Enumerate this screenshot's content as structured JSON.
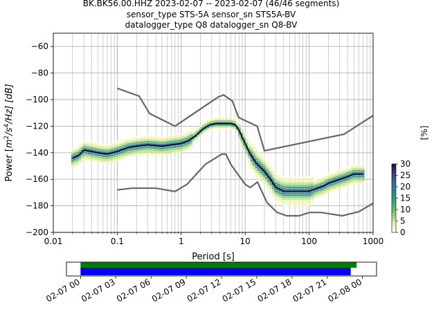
{
  "title": {
    "line1": "BK.BK56.00.HHZ   2023-02-07 -- 2023-02-07  (46/46 segments)",
    "line2": "sensor_type STS-5A sensor_sn STS5A-BV",
    "line3": "datalogger_type Q8 datalogger_sn Q8-BV"
  },
  "colors": {
    "nm_curve": "#666666",
    "mean_curve": "#000000",
    "grid": "#b0b0b0",
    "coverage_top": "#008000",
    "coverage_bottom": "#0000ff"
  },
  "chart_data": [
    {
      "type": "heatmap",
      "title": "",
      "xlabel": "Period [s]",
      "ylabel": "Power [m²/s⁴/Hz] [dB]",
      "ylabel_parts": {
        "pre": "Power [",
        "m": "m",
        "e1": "2",
        "mid": "/s",
        "e2": "4",
        "post": "/Hz] [dB]"
      },
      "x_scale": "log",
      "xlim": [
        0.01,
        1000
      ],
      "ylim": [
        -200,
        -50
      ],
      "x_ticks": [
        0.01,
        0.1,
        1,
        10,
        100,
        1000
      ],
      "x_tick_labels": [
        "0.01",
        "0.1",
        "1",
        "10",
        "100",
        "1000"
      ],
      "y_ticks": [
        -200,
        -180,
        -160,
        -140,
        -120,
        -100,
        -80,
        -60
      ],
      "y_tick_labels": [
        "−200",
        "−180",
        "−160",
        "−140",
        "−120",
        "−100",
        "−80",
        "−60"
      ],
      "grid": true,
      "colorbar": {
        "label": "[%]",
        "range": [
          0,
          30
        ],
        "ticks": [
          0,
          5,
          10,
          15,
          20,
          25,
          30
        ],
        "tick_labels": [
          "0",
          "5",
          "10",
          "15",
          "20",
          "25",
          "30"
        ]
      },
      "series": [
        {
          "role": "high-noise-model",
          "periods": [
            0.1,
            0.22,
            0.32,
            0.8,
            3.8,
            4.6,
            6.3,
            7.9,
            15.4,
            20,
            354.8,
            1000
          ],
          "values": [
            -91.5,
            -97.4,
            -110.5,
            -120,
            -98,
            -96.5,
            -101,
            -113.5,
            -120,
            -138.5,
            -126,
            -112
          ]
        },
        {
          "role": "low-noise-model",
          "periods": [
            0.1,
            0.17,
            0.4,
            0.8,
            1.24,
            2.4,
            4.3,
            5,
            6,
            10,
            12,
            15.6,
            21.9,
            31.6,
            45,
            70,
            101,
            154,
            328,
            600,
            1000
          ],
          "values": [
            -168,
            -166.7,
            -166.7,
            -169.2,
            -163.7,
            -148.6,
            -141.1,
            -141.1,
            -149,
            -163.8,
            -166.2,
            -162.1,
            -177.5,
            -185,
            -187.5,
            -187.5,
            -185,
            -185,
            -187.5,
            -184.4,
            -178
          ]
        },
        {
          "role": "mean",
          "periods": [
            0.02,
            0.025,
            0.03,
            0.04,
            0.05,
            0.07,
            0.1,
            0.15,
            0.2,
            0.3,
            0.5,
            0.7,
            1.0,
            1.3,
            1.7,
            2.2,
            2.8,
            3.5,
            4.2,
            5,
            6,
            7,
            8,
            10,
            12,
            15,
            20,
            25,
            30,
            40,
            50,
            70,
            100,
            130,
            170,
            200,
            300,
            400,
            500,
            700
          ],
          "values": [
            -144,
            -142,
            -138,
            -139,
            -140,
            -141,
            -139,
            -136,
            -135,
            -134,
            -135,
            -134,
            -133,
            -131,
            -127,
            -122,
            -119,
            -118,
            -118,
            -118,
            -118,
            -119,
            -123,
            -133,
            -141,
            -148,
            -154,
            -160,
            -166,
            -169,
            -169,
            -169,
            -169,
            -167,
            -165,
            -163,
            -160,
            -158,
            -156,
            -156
          ]
        }
      ]
    },
    {
      "type": "bar",
      "title": "",
      "x_tick_labels": [
        "02-07 00",
        "02-07 03",
        "02-07 06",
        "02-07 09",
        "02-07 12",
        "02-07 15",
        "02-07 18",
        "02-07 21",
        "02-08 00"
      ],
      "x_range_hours": [
        -1.2,
        25.2
      ],
      "series": [
        {
          "role": "data-availability",
          "start_hour": 0.0,
          "end_hour": 23.5
        },
        {
          "role": "psd-coverage",
          "start_hour": 0.0,
          "end_hour": 23.0
        }
      ]
    }
  ]
}
